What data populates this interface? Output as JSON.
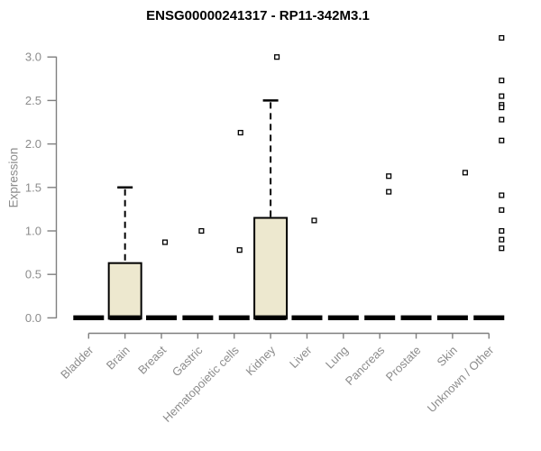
{
  "colors": {
    "background": "#ffffff",
    "title": "#000000",
    "axis_line": "#7f7f7f",
    "tick_label": "#8c8c8c",
    "axis_title": "#8c8c8c",
    "box_fill": "#EDE8CF",
    "box_stroke": "#000000",
    "median_line": "#000000",
    "whisker": "#000000",
    "outlier_fill": "#ffffff",
    "outlier_stroke": "#000000"
  },
  "chart_data": {
    "type": "boxplot",
    "title": "ENSG00000241317 - RP11-342M3.1",
    "ylabel": "Expression",
    "xlabel": "",
    "ylim": [
      0.0,
      3.3
    ],
    "yticks": [
      0.0,
      0.5,
      1.0,
      1.5,
      2.0,
      2.5,
      3.0
    ],
    "grid": false,
    "legend": false,
    "categories": [
      "Bladder",
      "Brain",
      "Breast",
      "Gastric",
      "Hematopoietic cells",
      "Kidney",
      "Liver",
      "Lung",
      "Pancreas",
      "Prostate",
      "Skin",
      "Unknown / Other"
    ],
    "boxes": [
      {
        "category": "Bladder",
        "median": 0.0,
        "q1": 0.0,
        "q3": 0.0,
        "whisker_low": 0.0,
        "whisker_high": 0.0,
        "outliers": []
      },
      {
        "category": "Brain",
        "median": 0.0,
        "q1": 0.0,
        "q3": 0.63,
        "whisker_low": 0.0,
        "whisker_high": 1.5,
        "outliers": []
      },
      {
        "category": "Breast",
        "median": 0.0,
        "q1": 0.0,
        "q3": 0.0,
        "whisker_low": 0.0,
        "whisker_high": 0.0,
        "outliers": [
          {
            "value": 0.87,
            "dx": 4
          }
        ]
      },
      {
        "category": "Gastric",
        "median": 0.0,
        "q1": 0.0,
        "q3": 0.0,
        "whisker_low": 0.0,
        "whisker_high": 0.0,
        "outliers": [
          {
            "value": 1.0,
            "dx": 4
          }
        ]
      },
      {
        "category": "Hematopoietic cells",
        "median": 0.0,
        "q1": 0.0,
        "q3": 0.0,
        "whisker_low": 0.0,
        "whisker_high": 0.0,
        "outliers": [
          {
            "value": 2.13,
            "dx": 7
          },
          {
            "value": 0.78,
            "dx": 6
          }
        ]
      },
      {
        "category": "Kidney",
        "median": 0.0,
        "q1": 0.0,
        "q3": 1.15,
        "whisker_low": 0.0,
        "whisker_high": 2.5,
        "outliers": [
          {
            "value": 3.0,
            "dx": 7
          }
        ]
      },
      {
        "category": "Liver",
        "median": 0.0,
        "q1": 0.0,
        "q3": 0.0,
        "whisker_low": 0.0,
        "whisker_high": 0.0,
        "outliers": [
          {
            "value": 1.12,
            "dx": 8
          }
        ]
      },
      {
        "category": "Lung",
        "median": 0.0,
        "q1": 0.0,
        "q3": 0.0,
        "whisker_low": 0.0,
        "whisker_high": 0.0,
        "outliers": []
      },
      {
        "category": "Pancreas",
        "median": 0.0,
        "q1": 0.0,
        "q3": 0.0,
        "whisker_low": 0.0,
        "whisker_high": 0.0,
        "outliers": [
          {
            "value": 1.63,
            "dx": 10
          },
          {
            "value": 1.45,
            "dx": 10
          }
        ]
      },
      {
        "category": "Prostate",
        "median": 0.0,
        "q1": 0.0,
        "q3": 0.0,
        "whisker_low": 0.0,
        "whisker_high": 0.0,
        "outliers": []
      },
      {
        "category": "Skin",
        "median": 0.0,
        "q1": 0.0,
        "q3": 0.0,
        "whisker_low": 0.0,
        "whisker_high": 0.0,
        "outliers": [
          {
            "value": 1.67,
            "dx": 14
          }
        ]
      },
      {
        "category": "Unknown / Other",
        "median": 0.0,
        "q1": 0.0,
        "q3": 0.0,
        "whisker_low": 0.0,
        "whisker_high": 0.0,
        "outliers": [
          {
            "value": 3.22,
            "dx": 14
          },
          {
            "value": 2.73,
            "dx": 14
          },
          {
            "value": 2.55,
            "dx": 14
          },
          {
            "value": 2.45,
            "dx": 14
          },
          {
            "value": 2.42,
            "dx": 14
          },
          {
            "value": 2.28,
            "dx": 14
          },
          {
            "value": 2.04,
            "dx": 14
          },
          {
            "value": 1.41,
            "dx": 14
          },
          {
            "value": 1.24,
            "dx": 14
          },
          {
            "value": 1.0,
            "dx": 14
          },
          {
            "value": 0.9,
            "dx": 14
          },
          {
            "value": 0.8,
            "dx": 14
          }
        ]
      }
    ]
  }
}
